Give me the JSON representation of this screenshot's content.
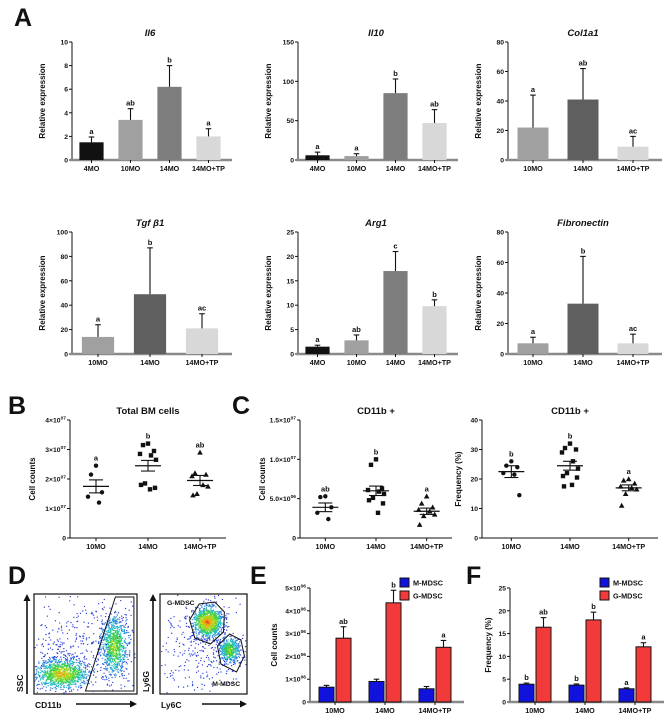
{
  "panel_labels": {
    "a": "A",
    "b": "B",
    "c": "C",
    "d": "D",
    "e": "E",
    "f": "F"
  },
  "colors": {
    "bar_4mo": "#111111",
    "bar_10mo": "#a0a0a0",
    "bar_14mo": "#7d7d7d",
    "bar_14mo_dark": "#5f5f5f",
    "bar_14motp": "#d8d8d8",
    "mdsc_blue": "#1212dd",
    "mdsc_red": "#f23a3a",
    "flow_palette": [
      "#2438d8",
      "#2b7de0",
      "#27bfc9",
      "#3bcf46",
      "#a8dc1c",
      "#f0a713",
      "#ea4612"
    ]
  },
  "chart_data": {
    "il6": {
      "type": "bar",
      "title": "Il6",
      "title_italic": true,
      "ylabel": "Relative expression",
      "ylim": [
        0,
        10
      ],
      "ystep": 2,
      "categories": [
        "4MO",
        "10MO",
        "14MO",
        "14MO+TP"
      ],
      "values": [
        1.5,
        3.4,
        6.2,
        2.0
      ],
      "errors": [
        0.45,
        0.95,
        1.8,
        0.65
      ],
      "letters": [
        "a",
        "ab",
        "b",
        "a"
      ],
      "bar_colors": [
        "#111111",
        "#a0a0a0",
        "#7d7d7d",
        "#d8d8d8"
      ]
    },
    "il10": {
      "type": "bar",
      "title": "Il10",
      "title_italic": true,
      "ylabel": "Relative expression",
      "ylim": [
        0,
        150
      ],
      "ystep": 50,
      "categories": [
        "4MO",
        "10MO",
        "14MO",
        "14MO+TP"
      ],
      "values": [
        6,
        5,
        85,
        47
      ],
      "errors": [
        4,
        3,
        18,
        17
      ],
      "letters": [
        "a",
        "a",
        "b",
        "ab"
      ],
      "bar_colors": [
        "#111111",
        "#a0a0a0",
        "#7d7d7d",
        "#d8d8d8"
      ]
    },
    "col1a1": {
      "type": "bar",
      "title": "Col1a1",
      "title_italic": true,
      "ylabel": "Relative expression",
      "ylim": [
        0,
        80
      ],
      "ystep": 20,
      "categories": [
        "10MO",
        "14MO",
        "14MO+TP"
      ],
      "values": [
        22,
        41,
        9
      ],
      "errors": [
        22,
        21,
        7
      ],
      "letters": [
        "a",
        "ab",
        "ac"
      ],
      "bar_colors": [
        "#a0a0a0",
        "#5f5f5f",
        "#d8d8d8"
      ]
    },
    "tgfb1": {
      "type": "bar",
      "title": "Tgf β1",
      "title_italic": true,
      "ylabel": "Relative expression",
      "ylim": [
        0,
        100
      ],
      "ystep": 20,
      "categories": [
        "10MO",
        "14MO",
        "14MO+TP"
      ],
      "values": [
        14,
        49,
        21
      ],
      "errors": [
        10,
        38,
        12
      ],
      "letters": [
        "a",
        "b",
        "ac"
      ],
      "bar_colors": [
        "#a0a0a0",
        "#5f5f5f",
        "#d8d8d8"
      ]
    },
    "arg1": {
      "type": "bar",
      "title": "Arg1",
      "title_italic": true,
      "ylabel": "Relative expression",
      "ylim": [
        0,
        25
      ],
      "ystep": 5,
      "categories": [
        "4MO",
        "10MO",
        "14MO",
        "14MO+TP"
      ],
      "values": [
        1.5,
        2.8,
        17,
        9.8
      ],
      "errors": [
        0.3,
        1.1,
        4,
        1.3
      ],
      "letters": [
        "a",
        "ab",
        "c",
        "b"
      ],
      "bar_colors": [
        "#111111",
        "#a0a0a0",
        "#7d7d7d",
        "#d8d8d8"
      ]
    },
    "fibronectin": {
      "type": "bar",
      "title": "Fibronectin",
      "title_italic": true,
      "ylabel": "Relative expression",
      "ylim": [
        0,
        80
      ],
      "ystep": 20,
      "categories": [
        "10MO",
        "14MO",
        "14MO+TP"
      ],
      "values": [
        7,
        33,
        7
      ],
      "errors": [
        4,
        31,
        6
      ],
      "letters": [
        "a",
        "b",
        "ac"
      ],
      "bar_colors": [
        "#a0a0a0",
        "#5f5f5f",
        "#d8d8d8"
      ]
    },
    "total_bm": {
      "type": "scatter",
      "title": "Total BM cells",
      "ylabel": "Cell counts",
      "ylim": [
        0,
        4
      ],
      "yticks": [
        "0",
        "1×10^07",
        "2×10^07",
        "3×10^07",
        "4×10^07"
      ],
      "categories": [
        "10MO",
        "14MO",
        "14MO+TP"
      ],
      "markers": [
        "circle",
        "square",
        "triangle"
      ],
      "groups": [
        {
          "points": [
            2.45,
            2.15,
            1.55,
            1.4,
            1.2
          ],
          "mean": 1.75,
          "sem": 0.22,
          "letter": "a"
        },
        {
          "points": [
            3.2,
            3.15,
            2.95,
            2.85,
            2.8,
            2.65,
            1.85,
            1.8,
            1.7,
            1.65
          ],
          "mean": 2.45,
          "sem": 0.18,
          "letter": "b"
        },
        {
          "points": [
            2.9,
            2.2,
            2.15,
            2.1,
            1.8,
            1.75,
            1.5,
            1.45
          ],
          "mean": 1.95,
          "sem": 0.17,
          "letter": "ab"
        }
      ]
    },
    "cd11b_counts": {
      "type": "scatter",
      "title": "CD11b +",
      "ylabel": "Cell counts",
      "ylim": [
        0,
        15
      ],
      "yticks": [
        "0",
        "5.0×10^06",
        "1.0×10^07",
        "1.5×10^07"
      ],
      "categories": [
        "10MO",
        "14MO",
        "14MO+TP"
      ],
      "markers": [
        "circle",
        "square",
        "triangle"
      ],
      "groups": [
        {
          "points": [
            5.3,
            5.2,
            3.9,
            3.2,
            2.4
          ],
          "mean": 3.9,
          "sem": 0.55,
          "letter": "ab"
        },
        {
          "points": [
            10.0,
            9.3,
            6.3,
            6.1,
            5.9,
            5.6,
            5.1,
            4.8,
            4.4,
            3.2
          ],
          "mean": 6.0,
          "sem": 0.6,
          "letter": "b"
        },
        {
          "points": [
            5.3,
            4.4,
            3.9,
            3.6,
            3.4,
            3.0,
            2.8,
            1.7
          ],
          "mean": 3.4,
          "sem": 0.4,
          "letter": "a"
        }
      ]
    },
    "cd11b_freq": {
      "type": "scatter",
      "title": "CD11b +",
      "ylabel": "Frequency (%)",
      "ylim": [
        0,
        40
      ],
      "ystep": 10,
      "categories": [
        "10MO",
        "14MO",
        "14MO+TP"
      ],
      "markers": [
        "circle",
        "square",
        "triangle"
      ],
      "groups": [
        {
          "points": [
            26,
            24.5,
            24,
            22,
            21.5,
            14.5
          ],
          "mean": 22.5,
          "sem": 2.0,
          "letter": "b"
        },
        {
          "points": [
            32,
            30.5,
            30,
            29,
            26,
            23.5,
            22,
            21,
            20.5,
            18,
            17.5
          ],
          "mean": 24.5,
          "sem": 1.5,
          "letter": "b"
        },
        {
          "points": [
            20,
            19.5,
            18.5,
            17.5,
            17,
            16.5,
            15,
            11
          ],
          "mean": 17,
          "sem": 1.0,
          "letter": "a"
        }
      ]
    },
    "mdsc_counts": {
      "type": "grouped-bar",
      "ylabel": "Cell counts",
      "ylim": [
        0,
        5
      ],
      "yticks": [
        "0",
        "1×10^06",
        "2×10^06",
        "3×10^06",
        "4×10^06",
        "5×10^06"
      ],
      "categories": [
        "10MO",
        "14MO",
        "14MO+TP"
      ],
      "legend": true,
      "series": [
        {
          "name": "M-MDSC",
          "color": "#1212dd",
          "values": [
            0.65,
            0.9,
            0.58
          ],
          "errors": [
            0.08,
            0.1,
            0.1
          ],
          "letters": [
            "",
            "",
            ""
          ]
        },
        {
          "name": "G-MDSC",
          "color": "#f23a3a",
          "values": [
            2.8,
            4.35,
            2.4
          ],
          "errors": [
            0.5,
            0.55,
            0.3
          ],
          "letters": [
            "ab",
            "b",
            "a"
          ]
        }
      ]
    },
    "mdsc_freq": {
      "type": "grouped-bar",
      "ylabel": "Frequency (%)",
      "ylim": [
        0,
        25
      ],
      "ystep": 5,
      "categories": [
        "10MO",
        "14MO",
        "14MO+TP"
      ],
      "legend": true,
      "series": [
        {
          "name": "M-MDSC",
          "color": "#1212dd",
          "values": [
            3.9,
            3.7,
            2.9
          ],
          "errors": [
            0.25,
            0.25,
            0.2
          ],
          "letters": [
            "b",
            "b",
            "a"
          ]
        },
        {
          "name": "G-MDSC",
          "color": "#f23a3a",
          "values": [
            16.4,
            18.0,
            12.1
          ],
          "errors": [
            2.1,
            1.7,
            0.9
          ],
          "letters": [
            "ab",
            "b",
            "a"
          ]
        }
      ]
    },
    "flow_cd11b": {
      "type": "flow",
      "xlabel": "CD11b",
      "ylabel": "SSC",
      "seed": 11,
      "clusters": [
        {
          "cx": 0.45,
          "cy": 0.52,
          "sx": 0.3,
          "sy": 0.24,
          "n": 380,
          "hot": 0
        },
        {
          "cx": 0.27,
          "cy": 0.8,
          "sx": 0.13,
          "sy": 0.075,
          "n": 1100,
          "hot": 5
        },
        {
          "cx": 0.78,
          "cy": 0.52,
          "sx": 0.065,
          "sy": 0.15,
          "n": 850,
          "hot": 4
        }
      ],
      "gates": [
        {
          "points": [
            [
              0.5,
              0.97
            ],
            [
              0.79,
              0.03
            ],
            [
              0.97,
              0.03
            ],
            [
              0.97,
              0.97
            ]
          ],
          "label": "",
          "label_pos": [
            0,
            0
          ]
        }
      ]
    },
    "flow_ly6": {
      "type": "flow",
      "xlabel": "Ly6C",
      "ylabel": "Ly6G",
      "seed": 23,
      "clusters": [
        {
          "cx": 0.45,
          "cy": 0.55,
          "sx": 0.27,
          "sy": 0.25,
          "n": 300,
          "hot": 0
        },
        {
          "cx": 0.55,
          "cy": 0.28,
          "sx": 0.085,
          "sy": 0.075,
          "n": 1000,
          "hot": 6
        },
        {
          "cx": 0.8,
          "cy": 0.56,
          "sx": 0.06,
          "sy": 0.065,
          "n": 450,
          "hot": 4
        }
      ],
      "gates": [
        {
          "points": [
            [
              0.34,
              0.26
            ],
            [
              0.45,
              0.1
            ],
            [
              0.63,
              0.08
            ],
            [
              0.74,
              0.18
            ],
            [
              0.73,
              0.38
            ],
            [
              0.58,
              0.5
            ],
            [
              0.4,
              0.44
            ]
          ],
          "label": "G-MDSC",
          "label_pos": [
            0.08,
            0.11
          ]
        },
        {
          "points": [
            [
              0.66,
              0.52
            ],
            [
              0.8,
              0.4
            ],
            [
              0.93,
              0.46
            ],
            [
              0.97,
              0.62
            ],
            [
              0.88,
              0.78
            ],
            [
              0.7,
              0.7
            ]
          ],
          "label": "M-MDSC",
          "label_pos": [
            0.6,
            0.92
          ]
        }
      ]
    }
  }
}
